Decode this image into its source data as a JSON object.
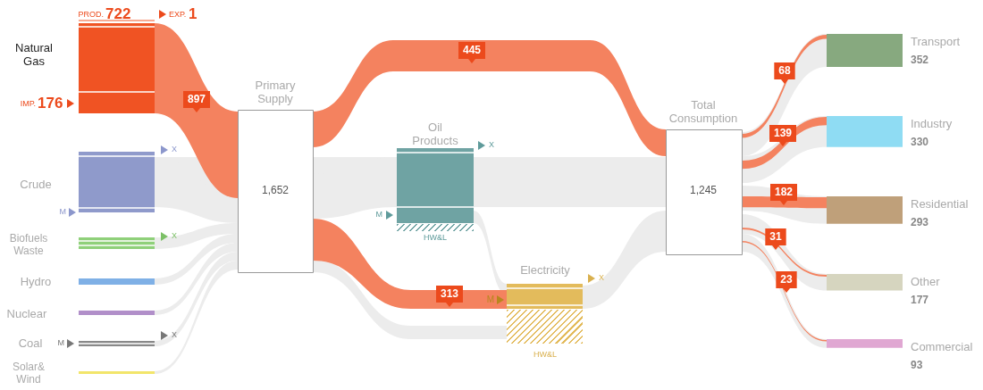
{
  "chart_data": {
    "type": "other",
    "categories": [
      "Transport",
      "Industry",
      "Residential",
      "Other",
      "Commercial"
    ],
    "values": [
      352,
      330,
      293,
      177,
      93
    ],
    "colors": [
      "#87a97f",
      "#8fdcf3",
      "#bfa07a",
      "#d6d5bf",
      "#e0a7d2"
    ],
    "data_labels": true,
    "annotations": [
      "Natural Gas",
      "Crude",
      "Biofuels Waste",
      "Hydro",
      "Nuclear",
      "Coal",
      "Solar& Wind",
      "PROD.",
      "722",
      "EXP.",
      "1",
      "IMP.",
      "176",
      "897",
      "Primary Supply",
      "1,652",
      "445",
      "313",
      "Oil Products",
      "Electricity",
      "Total Consumption",
      "1,245",
      "68",
      "139",
      "182",
      "31",
      "23",
      "X",
      "M",
      "X",
      "M",
      "X",
      "X",
      "M",
      "HW&L",
      "X",
      "M",
      "HW&L"
    ]
  }
}
